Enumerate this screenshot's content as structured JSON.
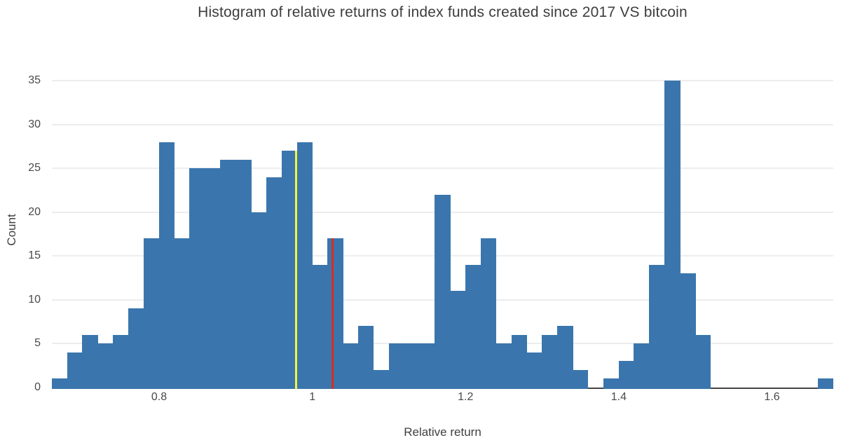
{
  "title": "Histogram of relative returns of index funds created since 2017 VS bitcoin",
  "chart_data": {
    "type": "bar",
    "subtype": "histogram",
    "title": "Histogram of relative returns of index funds created since 2017 VS bitcoin",
    "xlabel": "Relative return",
    "ylabel": "Count",
    "bin_start": 0.66,
    "bin_width": 0.02,
    "counts": [
      1,
      4,
      6,
      5,
      6,
      9,
      17,
      28,
      17,
      25,
      25,
      26,
      26,
      20,
      24,
      27,
      28,
      14,
      17,
      5,
      7,
      2,
      5,
      5,
      5,
      22,
      11,
      14,
      17,
      5,
      6,
      4,
      6,
      7,
      2,
      0,
      1,
      3,
      5,
      14,
      35,
      13,
      6,
      0,
      0,
      0,
      0,
      0,
      0,
      0,
      1
    ],
    "x_ticks": [
      {
        "v": 0.8,
        "label": "0.8"
      },
      {
        "v": 1,
        "label": "1"
      },
      {
        "v": 1.2,
        "label": "1.2"
      },
      {
        "v": 1.4,
        "label": "1.4"
      },
      {
        "v": 1.6,
        "label": "1.6"
      }
    ],
    "y_ticks": [
      {
        "v": 0,
        "label": "0"
      },
      {
        "v": 5,
        "label": "5"
      },
      {
        "v": 10,
        "label": "10"
      },
      {
        "v": 15,
        "label": "15"
      },
      {
        "v": 20,
        "label": "20"
      },
      {
        "v": 25,
        "label": "25"
      },
      {
        "v": 30,
        "label": "30"
      },
      {
        "v": 35,
        "label": "35"
      }
    ],
    "xlim": [
      0.66,
      1.68
    ],
    "ylim": [
      0,
      37
    ],
    "grid": "horizontal-only",
    "legend": "none",
    "vlines": [
      {
        "name": "yellow-marker-line",
        "x": 0.979,
        "top_count": 27,
        "color": "#f7f243",
        "width": 3
      },
      {
        "name": "red-marker-line",
        "x": 1.026,
        "top_count": 17,
        "color": "#dd2b1c",
        "width": 3
      }
    ],
    "colors": {
      "bar": "#3a76ad",
      "grid": "#ededed",
      "axis_line": "#454545",
      "title_text": "#3d3d3d",
      "tick_text": "#4a4a4a",
      "label_text": "#404040",
      "background": "#ffffff"
    }
  }
}
